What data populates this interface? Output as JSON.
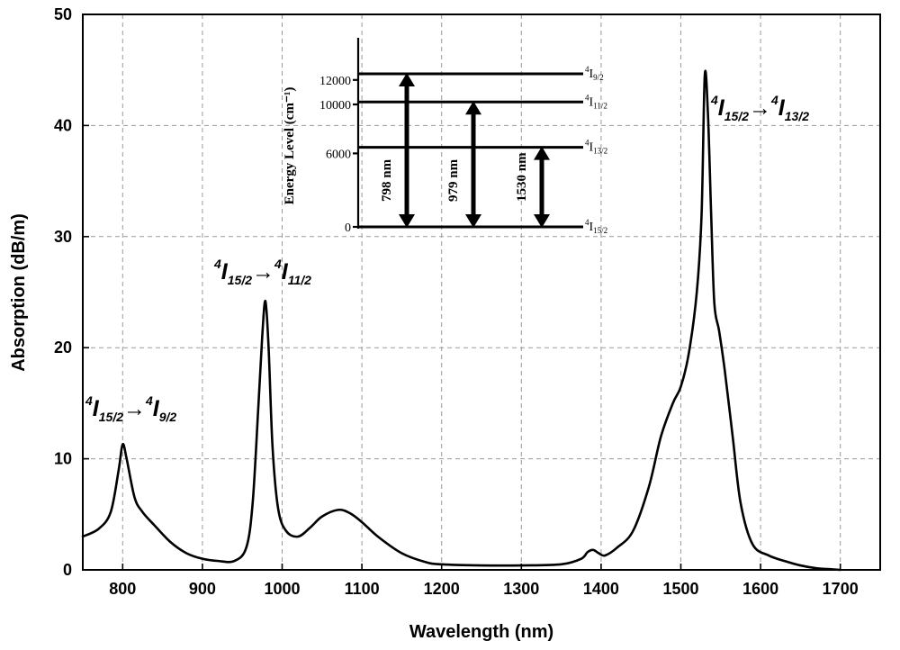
{
  "chart_data": {
    "type": "line",
    "title": "",
    "xlabel": "Wavelength (nm)",
    "ylabel": "Absorption (dB/m)",
    "xlim": [
      750,
      1750
    ],
    "ylim": [
      0,
      50
    ],
    "xticks": [
      800,
      900,
      1000,
      1100,
      1200,
      1300,
      1400,
      1500,
      1600,
      1700
    ],
    "yticks": [
      0,
      10,
      20,
      30,
      40,
      50
    ],
    "grid": true,
    "series": [
      {
        "x": [
          750,
          770,
          785,
          795,
          800,
          805,
          815,
          825,
          840,
          860,
          880,
          900,
          920,
          940,
          955,
          963,
          970,
          975,
          979,
          983,
          988,
          995,
          1005,
          1020,
          1035,
          1050,
          1070,
          1085,
          1100,
          1120,
          1150,
          1180,
          1200,
          1250,
          1300,
          1350,
          1375,
          1383,
          1390,
          1397,
          1405,
          1420,
          1440,
          1460,
          1475,
          1490,
          1500,
          1510,
          1520,
          1526,
          1530,
          1534,
          1538,
          1542,
          1548,
          1555,
          1565,
          1575,
          1590,
          1610,
          1630,
          1650,
          1670,
          1690,
          1700
        ],
        "y": [
          3.0,
          3.7,
          5.2,
          9.0,
          11.3,
          10.0,
          6.5,
          5.2,
          4.0,
          2.5,
          1.5,
          1.0,
          0.8,
          0.8,
          2.0,
          6.0,
          14.5,
          21.0,
          24.2,
          20.0,
          11.0,
          5.5,
          3.5,
          3.0,
          3.8,
          4.8,
          5.4,
          5.1,
          4.3,
          3.0,
          1.5,
          0.7,
          0.5,
          0.4,
          0.4,
          0.5,
          1.0,
          1.6,
          1.8,
          1.5,
          1.3,
          2.0,
          3.5,
          7.5,
          12.0,
          15.0,
          16.5,
          19.5,
          25.0,
          32.0,
          44.5,
          41.0,
          32.0,
          24.0,
          21.5,
          18.0,
          12.0,
          6.0,
          2.3,
          1.3,
          0.8,
          0.4,
          0.15,
          0.05,
          0.0
        ]
      }
    ],
    "annotations": [
      {
        "sup1": "4",
        "text1": "I",
        "sub1": "15/2",
        "arrow": "→",
        "sup2": "4",
        "text2": "I",
        "sub2": "9/2"
      },
      {
        "sup1": "4",
        "text1": "I",
        "sub1": "15/2",
        "arrow": "→",
        "sup2": "4",
        "text2": "I",
        "sub2": "11/2"
      },
      {
        "sup1": "4",
        "text1": "I",
        "sub1": "15/2",
        "arrow": "→",
        "sup2": "4",
        "text2": "I",
        "sub2": "13/2"
      }
    ],
    "inset": {
      "ylabel": "Energy Level (cm⁻¹)",
      "yticks": [
        0,
        6000,
        10000,
        12000
      ],
      "levels": [
        {
          "value": 0,
          "label": "4I15/2"
        },
        {
          "value": 6500,
          "label": "4I13/2"
        },
        {
          "value": 10200,
          "label": "4I11/2"
        },
        {
          "value": 12500,
          "label": "4I9/2"
        }
      ],
      "transitions": [
        {
          "label": "798 nm",
          "from": 0,
          "to": 12500
        },
        {
          "label": "979 nm",
          "from": 0,
          "to": 10200
        },
        {
          "label": "1530 nm",
          "from": 0,
          "to": 6500
        }
      ]
    }
  }
}
